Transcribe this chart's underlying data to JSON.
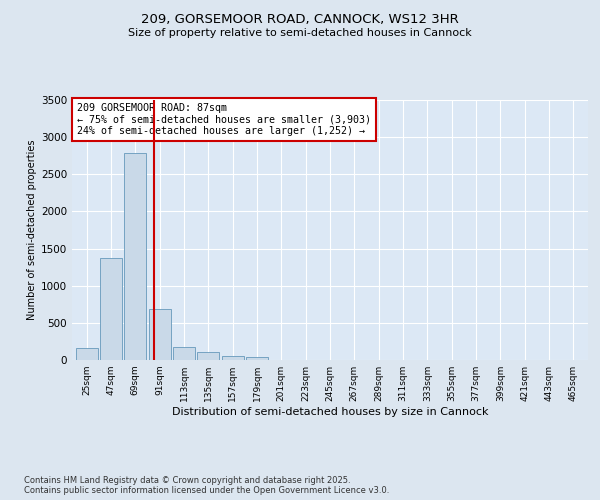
{
  "title1": "209, GORSEMOOR ROAD, CANNOCK, WS12 3HR",
  "title2": "Size of property relative to semi-detached houses in Cannock",
  "xlabel": "Distribution of semi-detached houses by size in Cannock",
  "ylabel": "Number of semi-detached properties",
  "categories": [
    "25sqm",
    "47sqm",
    "69sqm",
    "91sqm",
    "113sqm",
    "135sqm",
    "157sqm",
    "179sqm",
    "201sqm",
    "223sqm",
    "245sqm",
    "267sqm",
    "289sqm",
    "311sqm",
    "333sqm",
    "355sqm",
    "377sqm",
    "399sqm",
    "421sqm",
    "443sqm",
    "465sqm"
  ],
  "values": [
    155,
    1370,
    2780,
    690,
    175,
    110,
    55,
    35,
    0,
    0,
    0,
    0,
    0,
    0,
    0,
    0,
    0,
    0,
    0,
    0,
    0
  ],
  "bar_color": "#c9d9e8",
  "bar_edge_color": "#6699bb",
  "vline_x": 2.75,
  "vline_color": "#cc0000",
  "annotation_box_text": "209 GORSEMOOR ROAD: 87sqm\n← 75% of semi-detached houses are smaller (3,903)\n24% of semi-detached houses are larger (1,252) →",
  "annotation_box_color": "#cc0000",
  "bg_color": "#dce6f0",
  "plot_bg_color": "#dce8f5",
  "footer": "Contains HM Land Registry data © Crown copyright and database right 2025.\nContains public sector information licensed under the Open Government Licence v3.0.",
  "ylim": [
    0,
    3500
  ],
  "yticks": [
    0,
    500,
    1000,
    1500,
    2000,
    2500,
    3000,
    3500
  ]
}
